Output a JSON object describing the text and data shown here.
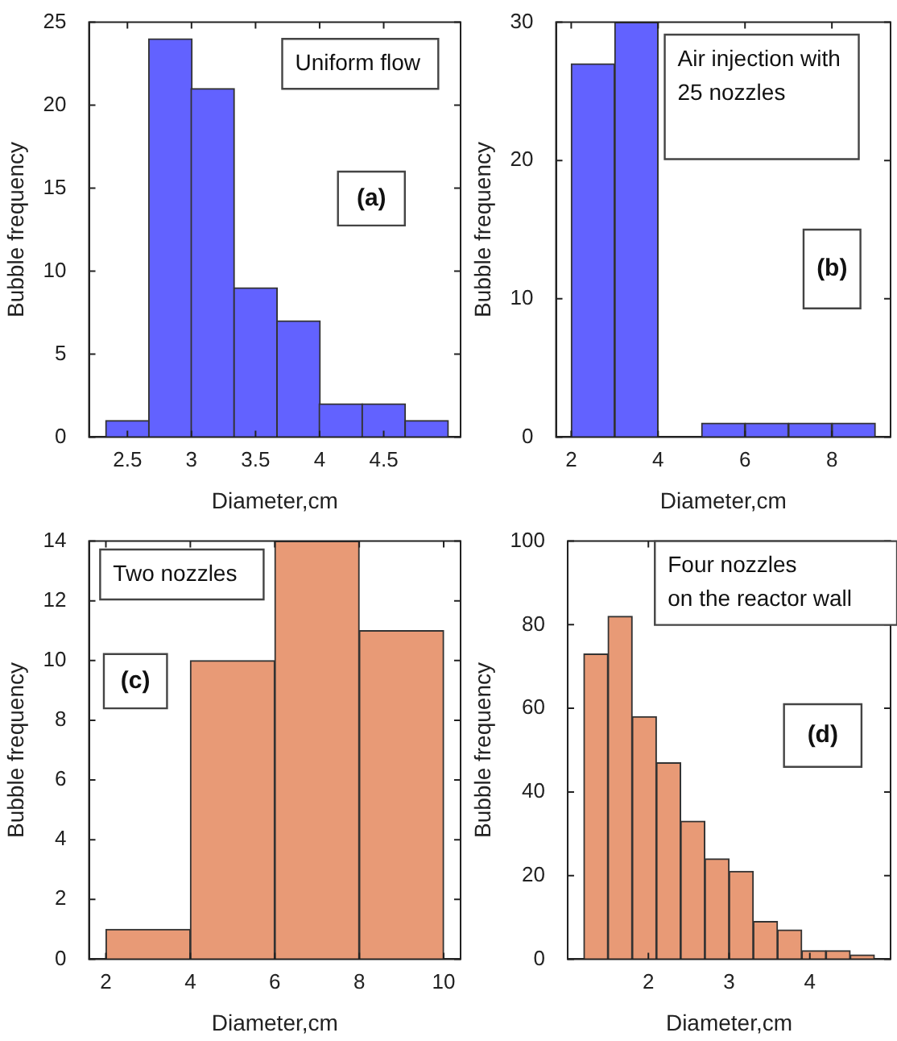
{
  "chart_data": [
    {
      "type": "histogram",
      "bins": [
        2.33,
        2.67,
        3,
        3.33,
        3.67,
        4,
        4.33,
        4.67,
        5
      ],
      "values": [
        1,
        24,
        21,
        9,
        7,
        2,
        2,
        1
      ],
      "color": "#6262ff",
      "xlabel": "Diameter,cm",
      "ylabel": "Bubble frequency",
      "xlim": [
        2.2,
        5.1
      ],
      "xticks": [
        2.5,
        3,
        3.5,
        4,
        4.5
      ],
      "ylim": [
        0,
        25
      ],
      "yticks": [
        0,
        5,
        10,
        15,
        20,
        25
      ],
      "annotations": [
        "Uniform flow",
        "(a)"
      ]
    },
    {
      "type": "histogram",
      "bins": [
        2,
        3,
        4,
        5,
        6,
        7,
        8,
        9
      ],
      "values": [
        27,
        30,
        0,
        1,
        1,
        1,
        1
      ],
      "color": "#6262ff",
      "xlabel": "Diameter,cm",
      "ylabel": "Bubble frequency",
      "xlim": [
        1.65,
        9.35
      ],
      "xticks": [
        2,
        4,
        6,
        8
      ],
      "ylim": [
        0,
        30
      ],
      "yticks": [
        0,
        10,
        20,
        30
      ],
      "annotations": [
        "Air injection with 25 nozzles",
        "(b)"
      ]
    },
    {
      "type": "histogram",
      "bins": [
        2,
        4,
        6,
        8,
        10
      ],
      "values": [
        1,
        10,
        14,
        11
      ],
      "color": "#e89a76",
      "xlabel": "Diameter,cm",
      "ylabel": "Bubble frequency",
      "xlim": [
        1.6,
        10.4
      ],
      "xticks": [
        2,
        4,
        6,
        8,
        10
      ],
      "ylim": [
        0,
        14
      ],
      "yticks": [
        0,
        2,
        4,
        6,
        8,
        10,
        12,
        14
      ],
      "annotations": [
        "Two nozzles",
        "(c)"
      ]
    },
    {
      "type": "histogram",
      "bins": [
        1.2,
        1.5,
        1.8,
        2.1,
        2.4,
        2.7,
        3,
        3.3,
        3.6,
        3.9,
        4.2,
        4.5,
        4.8
      ],
      "values": [
        73,
        82,
        58,
        47,
        33,
        24,
        21,
        9,
        7,
        2,
        2,
        1
      ],
      "color": "#e89a76",
      "xlabel": "Diameter,cm",
      "ylabel": "Bubble frequency",
      "xlim": [
        1,
        5
      ],
      "xticks": [
        2,
        3,
        4
      ],
      "ylim": [
        0,
        100
      ],
      "yticks": [
        0,
        20,
        40,
        60,
        80,
        100
      ],
      "annotations": [
        "Four nozzles on the reactor wall",
        "(d)"
      ]
    }
  ]
}
